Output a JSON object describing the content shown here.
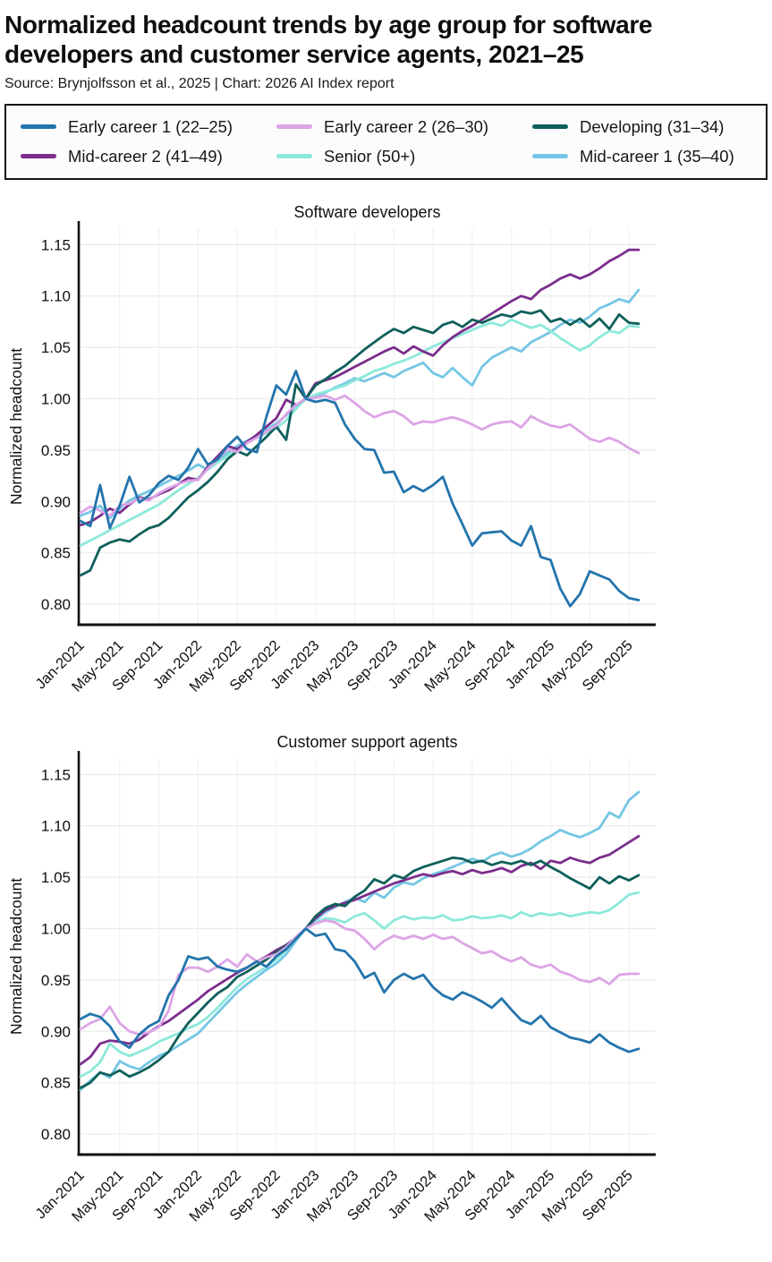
{
  "header": {
    "title": "Normalized headcount trends by age group for software developers and customer service agents, 2021–25",
    "source": "Source: Brynjolfsson et al., 2025 | Chart: 2026 AI Index report"
  },
  "legend": {
    "items": [
      {
        "label": "Early career 1 (22–25)",
        "color": "#2374ac"
      },
      {
        "label": "Early career 2 (26–30)",
        "color": "#dda4e6"
      },
      {
        "label": "Developing (31–34)",
        "color": "#0f5f5a"
      },
      {
        "label": "Mid-career 2 (41–49)",
        "color": "#7b2e8c"
      },
      {
        "label": "Senior (50+)",
        "color": "#8ce9da"
      },
      {
        "label": "Mid-career 1 (35–40)",
        "color": "#75c6e4"
      }
    ]
  },
  "chart_data": [
    {
      "type": "line",
      "title": "Software developers",
      "ylabel": "Normalized headcount",
      "ylim": [
        0.78,
        1.166
      ],
      "yticks": [
        0.8,
        0.85,
        0.9,
        0.95,
        1.0,
        1.05,
        1.1,
        1.15
      ],
      "grid": true,
      "x_tick_every": 4,
      "x": [
        "Jan-2021",
        "Feb-2021",
        "Mar-2021",
        "Apr-2021",
        "May-2021",
        "Jun-2021",
        "Jul-2021",
        "Aug-2021",
        "Sep-2021",
        "Oct-2021",
        "Nov-2021",
        "Dec-2021",
        "Jan-2022",
        "Feb-2022",
        "Mar-2022",
        "Apr-2022",
        "May-2022",
        "Jun-2022",
        "Jul-2022",
        "Aug-2022",
        "Sep-2022",
        "Oct-2022",
        "Nov-2022",
        "Dec-2022",
        "Jan-2023",
        "Feb-2023",
        "Mar-2023",
        "Apr-2023",
        "May-2023",
        "Jun-2023",
        "Jul-2023",
        "Aug-2023",
        "Sep-2023",
        "Oct-2023",
        "Nov-2023",
        "Dec-2023",
        "Jan-2024",
        "Feb-2024",
        "Mar-2024",
        "Apr-2024",
        "May-2024",
        "Jun-2024",
        "Jul-2024",
        "Aug-2024",
        "Sep-2024",
        "Oct-2024",
        "Nov-2024",
        "Dec-2024",
        "Jan-2025",
        "Feb-2025",
        "Mar-2025",
        "Apr-2025",
        "May-2025",
        "Jun-2025",
        "Jul-2025",
        "Aug-2025",
        "Sep-2025",
        "Oct-2025"
      ],
      "series": [
        {
          "name": "Early career 1 (22–25)",
          "color": "#2374ac",
          "values": [
            0.881,
            0.876,
            0.916,
            0.874,
            0.896,
            0.924,
            0.899,
            0.906,
            0.918,
            0.925,
            0.921,
            0.933,
            0.951,
            0.936,
            0.941,
            0.954,
            0.963,
            0.951,
            0.948,
            0.983,
            1.013,
            1.004,
            1.027,
            1.0,
            0.997,
            0.999,
            0.996,
            0.975,
            0.961,
            0.951,
            0.95,
            0.928,
            0.929,
            0.909,
            0.915,
            0.91,
            0.916,
            0.924,
            0.898,
            0.878,
            0.857,
            0.869,
            0.87,
            0.871,
            0.862,
            0.857,
            0.876,
            0.846,
            0.843,
            0.815,
            0.798,
            0.81,
            0.832,
            0.828,
            0.824,
            0.813,
            0.806,
            0.804
          ]
        },
        {
          "name": "Early career 2 (26–30)",
          "color": "#dda4e6",
          "values": [
            0.889,
            0.895,
            0.891,
            0.886,
            0.896,
            0.898,
            0.903,
            0.901,
            0.908,
            0.913,
            0.917,
            0.92,
            0.921,
            0.932,
            0.941,
            0.951,
            0.948,
            0.957,
            0.962,
            0.968,
            0.974,
            0.985,
            0.994,
            1.0,
            1.001,
            1.003,
            0.999,
            1.003,
            0.996,
            0.988,
            0.982,
            0.986,
            0.988,
            0.983,
            0.975,
            0.978,
            0.977,
            0.98,
            0.982,
            0.979,
            0.975,
            0.97,
            0.975,
            0.977,
            0.978,
            0.972,
            0.983,
            0.978,
            0.974,
            0.972,
            0.975,
            0.968,
            0.961,
            0.958,
            0.962,
            0.958,
            0.952,
            0.947
          ]
        },
        {
          "name": "Developing (31–34)",
          "color": "#0f5f5a",
          "values": [
            0.828,
            0.833,
            0.855,
            0.86,
            0.863,
            0.861,
            0.868,
            0.874,
            0.877,
            0.884,
            0.894,
            0.904,
            0.911,
            0.919,
            0.929,
            0.941,
            0.949,
            0.945,
            0.954,
            0.963,
            0.973,
            0.96,
            1.014,
            1.0,
            1.013,
            1.019,
            1.026,
            1.032,
            1.04,
            1.048,
            1.055,
            1.062,
            1.068,
            1.064,
            1.07,
            1.067,
            1.064,
            1.072,
            1.075,
            1.07,
            1.077,
            1.074,
            1.078,
            1.082,
            1.08,
            1.085,
            1.083,
            1.086,
            1.075,
            1.078,
            1.072,
            1.078,
            1.07,
            1.078,
            1.068,
            1.082,
            1.074,
            1.073
          ]
        },
        {
          "name": "Mid-career 2 (41–49)",
          "color": "#7b2e8c",
          "values": [
            0.877,
            0.88,
            0.886,
            0.893,
            0.889,
            0.897,
            0.904,
            0.902,
            0.907,
            0.911,
            0.917,
            0.923,
            0.921,
            0.934,
            0.944,
            0.954,
            0.951,
            0.958,
            0.965,
            0.973,
            0.981,
            0.999,
            0.994,
            1.0,
            1.015,
            1.018,
            1.021,
            1.026,
            1.031,
            1.036,
            1.041,
            1.046,
            1.05,
            1.044,
            1.051,
            1.046,
            1.042,
            1.052,
            1.06,
            1.066,
            1.071,
            1.077,
            1.083,
            1.089,
            1.095,
            1.1,
            1.097,
            1.106,
            1.111,
            1.117,
            1.121,
            1.117,
            1.121,
            1.127,
            1.134,
            1.139,
            1.145,
            1.145
          ]
        },
        {
          "name": "Senior (50+)",
          "color": "#8ce9da",
          "values": [
            0.857,
            0.862,
            0.867,
            0.872,
            0.877,
            0.882,
            0.887,
            0.892,
            0.897,
            0.904,
            0.911,
            0.917,
            0.923,
            0.931,
            0.938,
            0.944,
            0.951,
            0.957,
            0.962,
            0.967,
            0.971,
            0.979,
            0.99,
            1.0,
            1.004,
            1.007,
            1.01,
            1.013,
            1.018,
            1.022,
            1.027,
            1.03,
            1.034,
            1.037,
            1.041,
            1.046,
            1.051,
            1.055,
            1.059,
            1.063,
            1.067,
            1.071,
            1.074,
            1.071,
            1.077,
            1.073,
            1.069,
            1.072,
            1.066,
            1.059,
            1.053,
            1.047,
            1.052,
            1.06,
            1.066,
            1.064,
            1.071,
            1.07
          ]
        },
        {
          "name": "Mid-career 1 (35–40)",
          "color": "#75c6e4",
          "values": [
            0.886,
            0.89,
            0.896,
            0.884,
            0.893,
            0.901,
            0.906,
            0.91,
            0.915,
            0.92,
            0.925,
            0.93,
            0.936,
            0.931,
            0.94,
            0.947,
            0.954,
            0.959,
            0.964,
            0.97,
            0.976,
            0.984,
            0.992,
            1.0,
            1.002,
            1.006,
            1.011,
            1.015,
            1.02,
            1.017,
            1.021,
            1.025,
            1.021,
            1.027,
            1.031,
            1.035,
            1.025,
            1.021,
            1.03,
            1.021,
            1.013,
            1.031,
            1.04,
            1.045,
            1.05,
            1.046,
            1.055,
            1.06,
            1.065,
            1.072,
            1.077,
            1.074,
            1.08,
            1.088,
            1.092,
            1.097,
            1.094,
            1.106
          ]
        }
      ]
    },
    {
      "type": "line",
      "title": "Customer support agents",
      "ylabel": "Normalized headcount",
      "ylim": [
        0.78,
        1.166
      ],
      "yticks": [
        0.8,
        0.85,
        0.9,
        0.95,
        1.0,
        1.05,
        1.1,
        1.15
      ],
      "grid": true,
      "x_tick_every": 4,
      "x": [
        "Jan-2021",
        "Feb-2021",
        "Mar-2021",
        "Apr-2021",
        "May-2021",
        "Jun-2021",
        "Jul-2021",
        "Aug-2021",
        "Sep-2021",
        "Oct-2021",
        "Nov-2021",
        "Dec-2021",
        "Jan-2022",
        "Feb-2022",
        "Mar-2022",
        "Apr-2022",
        "May-2022",
        "Jun-2022",
        "Jul-2022",
        "Aug-2022",
        "Sep-2022",
        "Oct-2022",
        "Nov-2022",
        "Dec-2022",
        "Jan-2023",
        "Feb-2023",
        "Mar-2023",
        "Apr-2023",
        "May-2023",
        "Jun-2023",
        "Jul-2023",
        "Aug-2023",
        "Sep-2023",
        "Oct-2023",
        "Nov-2023",
        "Dec-2023",
        "Jan-2024",
        "Feb-2024",
        "Mar-2024",
        "Apr-2024",
        "May-2024",
        "Jun-2024",
        "Jul-2024",
        "Aug-2024",
        "Sep-2024",
        "Oct-2024",
        "Nov-2024",
        "Dec-2024",
        "Jan-2025",
        "Feb-2025",
        "Mar-2025",
        "Apr-2025",
        "May-2025",
        "Jun-2025",
        "Jul-2025",
        "Aug-2025",
        "Sep-2025",
        "Oct-2025"
      ],
      "series": [
        {
          "name": "Early career 1 (22–25)",
          "color": "#2374ac",
          "values": [
            0.912,
            0.917,
            0.914,
            0.905,
            0.89,
            0.884,
            0.897,
            0.905,
            0.91,
            0.935,
            0.95,
            0.973,
            0.97,
            0.972,
            0.963,
            0.96,
            0.958,
            0.962,
            0.968,
            0.963,
            0.973,
            0.98,
            0.99,
            1.0,
            0.993,
            0.995,
            0.98,
            0.978,
            0.968,
            0.952,
            0.957,
            0.938,
            0.95,
            0.956,
            0.951,
            0.955,
            0.943,
            0.935,
            0.931,
            0.938,
            0.934,
            0.929,
            0.923,
            0.932,
            0.921,
            0.911,
            0.907,
            0.915,
            0.904,
            0.899,
            0.894,
            0.892,
            0.889,
            0.897,
            0.889,
            0.884,
            0.88,
            0.883
          ]
        },
        {
          "name": "Early career 2 (26–30)",
          "color": "#dda4e6",
          "values": [
            0.902,
            0.908,
            0.912,
            0.924,
            0.908,
            0.9,
            0.897,
            0.899,
            0.904,
            0.92,
            0.955,
            0.962,
            0.962,
            0.958,
            0.963,
            0.97,
            0.963,
            0.975,
            0.968,
            0.972,
            0.975,
            0.982,
            0.992,
            1.0,
            1.005,
            1.008,
            1.006,
            1.0,
            0.998,
            0.99,
            0.98,
            0.988,
            0.993,
            0.99,
            0.993,
            0.99,
            0.994,
            0.99,
            0.992,
            0.986,
            0.981,
            0.976,
            0.978,
            0.972,
            0.968,
            0.972,
            0.965,
            0.962,
            0.965,
            0.958,
            0.955,
            0.95,
            0.948,
            0.952,
            0.946,
            0.955,
            0.956,
            0.956
          ]
        },
        {
          "name": "Developing (31–34)",
          "color": "#0f5f5a",
          "values": [
            0.845,
            0.85,
            0.86,
            0.857,
            0.862,
            0.856,
            0.86,
            0.865,
            0.872,
            0.88,
            0.895,
            0.908,
            0.918,
            0.928,
            0.937,
            0.943,
            0.953,
            0.958,
            0.964,
            0.97,
            0.977,
            0.983,
            0.991,
            1.0,
            1.012,
            1.02,
            1.024,
            1.022,
            1.031,
            1.037,
            1.048,
            1.044,
            1.052,
            1.049,
            1.056,
            1.06,
            1.063,
            1.066,
            1.069,
            1.068,
            1.064,
            1.066,
            1.062,
            1.065,
            1.063,
            1.066,
            1.062,
            1.066,
            1.06,
            1.055,
            1.049,
            1.044,
            1.039,
            1.05,
            1.044,
            1.051,
            1.047,
            1.052
          ]
        },
        {
          "name": "Mid-career 2 (41–49)",
          "color": "#7b2e8c",
          "values": [
            0.868,
            0.875,
            0.888,
            0.891,
            0.89,
            0.888,
            0.892,
            0.899,
            0.905,
            0.91,
            0.917,
            0.924,
            0.931,
            0.939,
            0.945,
            0.951,
            0.957,
            0.962,
            0.968,
            0.973,
            0.979,
            0.984,
            0.991,
            1.0,
            1.01,
            1.018,
            1.022,
            1.025,
            1.028,
            1.032,
            1.036,
            1.04,
            1.044,
            1.047,
            1.05,
            1.053,
            1.051,
            1.054,
            1.056,
            1.053,
            1.057,
            1.054,
            1.056,
            1.059,
            1.055,
            1.061,
            1.064,
            1.058,
            1.066,
            1.064,
            1.069,
            1.066,
            1.064,
            1.069,
            1.072,
            1.078,
            1.084,
            1.09
          ]
        },
        {
          "name": "Senior (50+)",
          "color": "#8ce9da",
          "values": [
            0.856,
            0.861,
            0.87,
            0.888,
            0.88,
            0.876,
            0.88,
            0.884,
            0.89,
            0.894,
            0.898,
            0.903,
            0.907,
            0.914,
            0.923,
            0.933,
            0.943,
            0.951,
            0.957,
            0.963,
            0.97,
            0.979,
            0.99,
            1.0,
            1.006,
            1.01,
            1.009,
            1.006,
            1.012,
            1.015,
            1.008,
            1.0,
            1.008,
            1.012,
            1.009,
            1.011,
            1.01,
            1.013,
            1.008,
            1.009,
            1.012,
            1.01,
            1.011,
            1.013,
            1.01,
            1.016,
            1.012,
            1.015,
            1.013,
            1.015,
            1.012,
            1.014,
            1.016,
            1.015,
            1.018,
            1.025,
            1.033,
            1.035
          ]
        },
        {
          "name": "Mid-career 1 (35–40)",
          "color": "#75c6e4",
          "values": [
            0.843,
            0.852,
            0.86,
            0.855,
            0.871,
            0.866,
            0.863,
            0.87,
            0.876,
            0.88,
            0.886,
            0.892,
            0.898,
            0.908,
            0.918,
            0.928,
            0.938,
            0.946,
            0.953,
            0.96,
            0.966,
            0.975,
            0.988,
            1.0,
            1.008,
            1.016,
            1.021,
            1.026,
            1.03,
            1.026,
            1.035,
            1.03,
            1.04,
            1.045,
            1.043,
            1.049,
            1.053,
            1.056,
            1.06,
            1.064,
            1.068,
            1.065,
            1.071,
            1.074,
            1.07,
            1.073,
            1.078,
            1.085,
            1.09,
            1.096,
            1.092,
            1.089,
            1.093,
            1.098,
            1.113,
            1.108,
            1.125,
            1.133
          ]
        }
      ]
    }
  ]
}
